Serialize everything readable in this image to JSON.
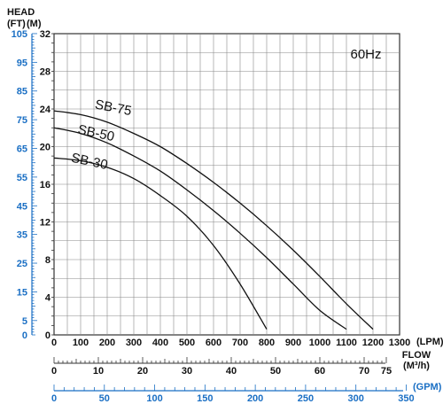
{
  "chart_data": {
    "type": "line",
    "frequency_label": "60Hz",
    "y_axis_m": {
      "title": "(M)",
      "ticks": [
        "0",
        "4",
        "8",
        "12",
        "16",
        "20",
        "24",
        "28",
        "32"
      ],
      "ylim": [
        0,
        32
      ]
    },
    "y_axis_ft": {
      "title": "(FT)",
      "ticks": [
        "0",
        "5",
        "15",
        "25",
        "35",
        "45",
        "55",
        "65",
        "75",
        "85",
        "95",
        "105"
      ],
      "color": "#1a6fc4"
    },
    "head_title": "HEAD",
    "x_axis_lpm": {
      "unit": "(LPM)",
      "ticks": [
        "0",
        "100",
        "200",
        "300",
        "400",
        "500",
        "600",
        "700",
        "800",
        "900",
        "1000",
        "1100",
        "1200",
        "1300"
      ],
      "xlim": [
        0,
        1300
      ]
    },
    "x_axis_m3h": {
      "title": "FLOW",
      "unit": "(M³/h)",
      "ticks": [
        "0",
        "10",
        "20",
        "30",
        "40",
        "50",
        "60",
        "70",
        "75"
      ]
    },
    "x_axis_gpm": {
      "unit": "(GPM)",
      "ticks": [
        "0",
        "50",
        "100",
        "150",
        "200",
        "250",
        "300",
        "350"
      ],
      "color": "#1a6fc4"
    },
    "series": [
      {
        "name": "SB-75",
        "x": [
          0,
          100,
          200,
          300,
          400,
          500,
          600,
          700,
          800,
          900,
          1000,
          1100,
          1200
        ],
        "y": [
          23.8,
          23.4,
          22.6,
          21.4,
          20.0,
          18.2,
          16.2,
          14.0,
          11.6,
          9.0,
          6.2,
          3.3,
          0.6
        ]
      },
      {
        "name": "SB-50",
        "x": [
          0,
          100,
          200,
          300,
          400,
          500,
          600,
          700,
          800,
          900,
          1000,
          1100
        ],
        "y": [
          22.0,
          21.4,
          20.4,
          19.0,
          17.4,
          15.4,
          13.2,
          10.8,
          8.2,
          5.4,
          2.6,
          0.6
        ]
      },
      {
        "name": "SB-30",
        "x": [
          0,
          100,
          200,
          300,
          400,
          500,
          600,
          700,
          800
        ],
        "y": [
          18.8,
          18.5,
          17.8,
          16.6,
          14.8,
          12.6,
          9.5,
          5.4,
          0.6
        ]
      }
    ],
    "colors": {
      "grid": "#888888",
      "curve": "#111111",
      "blue": "#1a6fc4"
    }
  }
}
